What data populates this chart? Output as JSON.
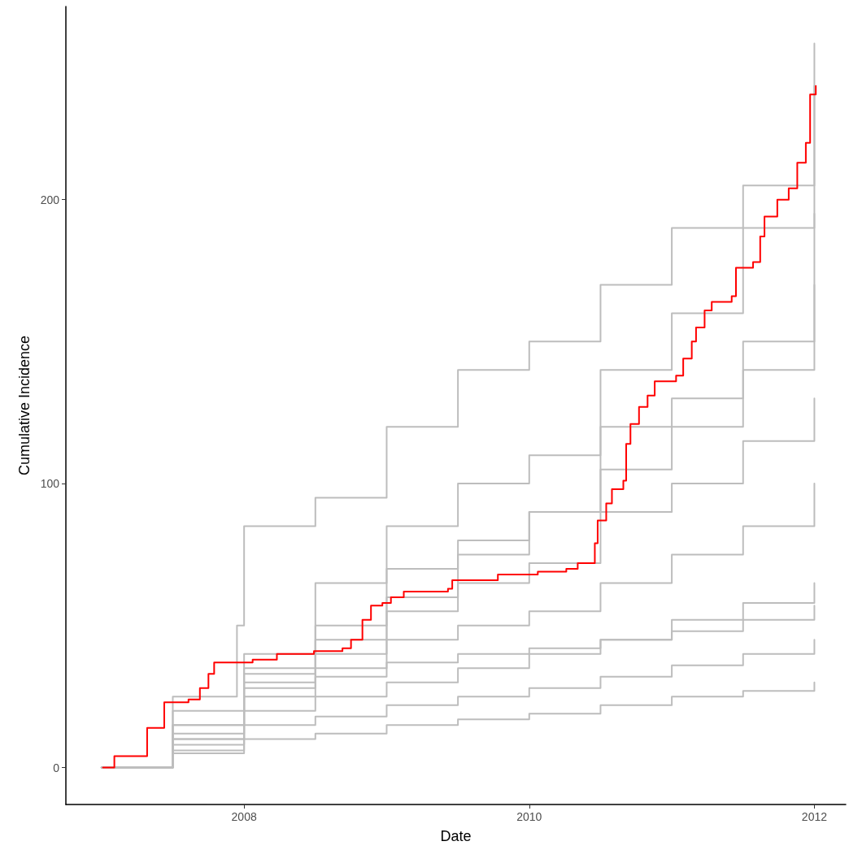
{
  "chart_data": {
    "type": "step",
    "xlabel": "Date",
    "ylabel": "Cumulative Incidence",
    "xlim": [
      2006.75,
      2012.22
    ],
    "ylim": [
      -13,
      268
    ],
    "xticks": [
      2008,
      2010,
      2012
    ],
    "yticks": [
      0,
      100,
      200
    ],
    "grid": false,
    "line_style": "solid",
    "marker": "none",
    "series": [
      {
        "color": "#bdbdbd",
        "x": [
          2007.0,
          2007.5,
          2007.95,
          2008.0,
          2008.5,
          2009.0,
          2009.5,
          2010.0,
          2010.5,
          2011.0,
          2011.5,
          2012.0
        ],
        "values": [
          0,
          25,
          50,
          85,
          95,
          120,
          140,
          150,
          170,
          190,
          205,
          255
        ]
      },
      {
        "color": "#bdbdbd",
        "x": [
          2007.0,
          2007.5,
          2008.0,
          2008.5,
          2009.0,
          2009.5,
          2010.0,
          2010.5,
          2011.0,
          2011.5,
          2012.0
        ],
        "values": [
          0,
          20,
          40,
          65,
          85,
          100,
          110,
          140,
          160,
          190,
          240
        ]
      },
      {
        "color": "#bdbdbd",
        "x": [
          2007.0,
          2007.5,
          2008.0,
          2008.5,
          2009.0,
          2009.5,
          2010.0,
          2010.5,
          2011.0,
          2011.5,
          2012.0
        ],
        "values": [
          0,
          15,
          30,
          50,
          70,
          80,
          90,
          120,
          130,
          150,
          170
        ]
      },
      {
        "color": "#bdbdbd",
        "x": [
          2007.0,
          2007.5,
          2008.0,
          2008.5,
          2009.0,
          2009.5,
          2010.0,
          2010.5,
          2011.0,
          2011.5,
          2012.0
        ],
        "values": [
          0,
          12,
          28,
          40,
          55,
          65,
          72,
          90,
          100,
          115,
          130
        ]
      },
      {
        "color": "#bdbdbd",
        "x": [
          2007.0,
          2007.5,
          2008.0,
          2008.5,
          2009.0,
          2009.5,
          2010.0,
          2010.5,
          2011.0,
          2011.5,
          2012.0
        ],
        "values": [
          0,
          10,
          25,
          32,
          45,
          50,
          55,
          65,
          75,
          85,
          100
        ]
      },
      {
        "color": "#bdbdbd",
        "x": [
          2007.0,
          2007.5,
          2008.0,
          2008.5,
          2009.0,
          2009.5,
          2010.0,
          2010.5,
          2011.0,
          2011.5,
          2012.0
        ],
        "values": [
          0,
          8,
          20,
          25,
          30,
          35,
          40,
          45,
          52,
          58,
          65
        ]
      },
      {
        "color": "#bdbdbd",
        "x": [
          2007.0,
          2007.5,
          2008.0,
          2008.5,
          2009.0,
          2009.5,
          2010.0,
          2010.5,
          2011.0,
          2011.5,
          2012.0
        ],
        "values": [
          0,
          6,
          15,
          18,
          22,
          25,
          28,
          32,
          36,
          40,
          45
        ]
      },
      {
        "color": "#bdbdbd",
        "x": [
          2007.0,
          2007.5,
          2008.0,
          2008.5,
          2009.0,
          2009.5,
          2010.0,
          2010.5,
          2011.0,
          2011.5,
          2012.0
        ],
        "values": [
          0,
          5,
          10,
          12,
          15,
          17,
          19,
          22,
          25,
          27,
          30
        ]
      },
      {
        "color": "#bdbdbd",
        "x": [
          2007.0,
          2007.5,
          2008.0,
          2008.5,
          2009.0,
          2009.5,
          2010.0,
          2010.5,
          2011.0,
          2011.5,
          2012.0
        ],
        "values": [
          0,
          10,
          33,
          35,
          37,
          40,
          42,
          45,
          48,
          52,
          57
        ]
      },
      {
        "color": "#bdbdbd",
        "x": [
          2007.0,
          2007.5,
          2008.0,
          2008.5,
          2009.0,
          2009.5,
          2010.0,
          2010.5,
          2011.0,
          2011.5,
          2012.0
        ],
        "values": [
          0,
          15,
          35,
          45,
          60,
          75,
          90,
          105,
          120,
          140,
          195
        ]
      },
      {
        "color": "#ff0000",
        "x": [
          2007.01,
          2007.09,
          2007.32,
          2007.44,
          2007.61,
          2007.69,
          2007.75,
          2007.79,
          2008.01,
          2008.06,
          2008.23,
          2008.49,
          2008.69,
          2008.75,
          2008.83,
          2008.89,
          2008.97,
          2009.03,
          2009.12,
          2009.43,
          2009.46,
          2009.77,
          2009.78,
          2010.03,
          2010.06,
          2010.26,
          2010.34,
          2010.46,
          2010.48,
          2010.54,
          2010.58,
          2010.66,
          2010.68,
          2010.71,
          2010.77,
          2010.83,
          2010.88,
          2011.03,
          2011.08,
          2011.14,
          2011.17,
          2011.23,
          2011.28,
          2011.42,
          2011.45,
          2011.57,
          2011.62,
          2011.65,
          2011.74,
          2011.82,
          2011.88,
          2011.94,
          2011.97,
          2012.01
        ],
        "values": [
          0,
          4,
          14,
          23,
          24,
          28,
          33,
          37,
          37,
          38,
          40,
          41,
          42,
          45,
          52,
          57,
          58,
          60,
          62,
          63,
          66,
          66,
          68,
          68,
          69,
          70,
          72,
          79,
          87,
          93,
          98,
          101,
          114,
          121,
          127,
          131,
          136,
          138,
          144,
          150,
          155,
          161,
          164,
          166,
          176,
          178,
          187,
          194,
          200,
          204,
          213,
          220,
          237,
          240
        ]
      }
    ]
  }
}
